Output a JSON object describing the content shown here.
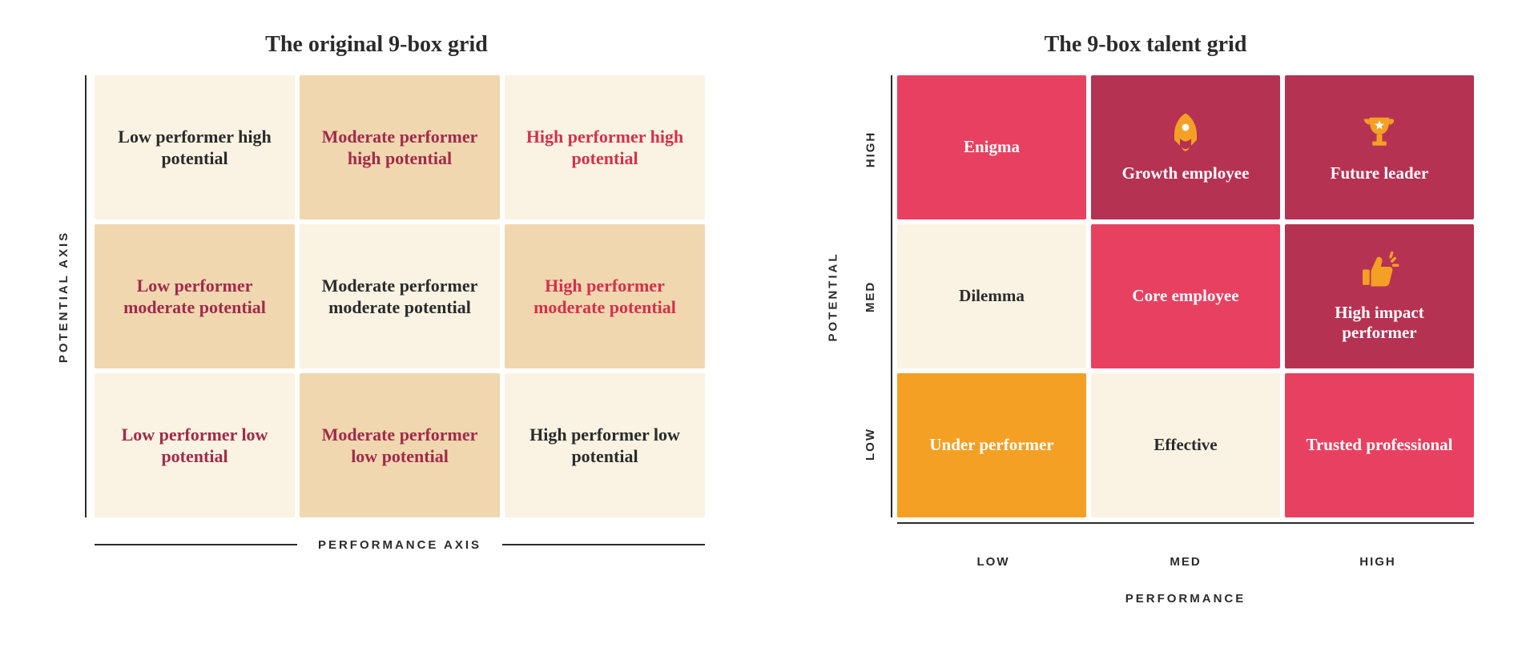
{
  "colors": {
    "cream": "#faf3e3",
    "tan": "#f0d7b0",
    "text_dark": "#2b2b2b",
    "text_maroon": "#a22a4a",
    "text_red": "#d6304a",
    "orange": "#f4a024",
    "pink": "#e84060",
    "dark_pink": "#b53253",
    "white": "#ffffff",
    "icon_gold": "#f4a024"
  },
  "left": {
    "title": "The original 9-box grid",
    "y_axis_label": "POTENTIAL AXIS",
    "x_axis_label": "PERFORMANCE AXIS",
    "cells": [
      {
        "label": "Low performer high potential",
        "bg": "cream",
        "fg": "text_dark"
      },
      {
        "label": "Moderate performer high potential",
        "bg": "tan",
        "fg": "text_maroon"
      },
      {
        "label": "High performer high potential",
        "bg": "cream",
        "fg": "text_red"
      },
      {
        "label": "Low performer moderate potential",
        "bg": "tan",
        "fg": "text_maroon"
      },
      {
        "label": "Moderate performer moderate potential",
        "bg": "cream",
        "fg": "text_dark"
      },
      {
        "label": "High performer moderate potential",
        "bg": "tan",
        "fg": "text_red"
      },
      {
        "label": "Low performer low potential",
        "bg": "cream",
        "fg": "text_maroon"
      },
      {
        "label": "Moderate performer low potential",
        "bg": "tan",
        "fg": "text_maroon"
      },
      {
        "label": "High performer low potential",
        "bg": "cream",
        "fg": "text_dark"
      }
    ]
  },
  "right": {
    "title": "The 9-box talent grid",
    "y_axis_label": "POTENTIAL",
    "x_axis_label": "PERFORMANCE",
    "y_ticks": [
      "HIGH",
      "MED",
      "LOW"
    ],
    "x_ticks": [
      "LOW",
      "MED",
      "HIGH"
    ],
    "cells": [
      {
        "label": "Enigma",
        "bg": "pink",
        "fg": "white",
        "icon": null
      },
      {
        "label": "Growth employee",
        "bg": "dark_pink",
        "fg": "white",
        "icon": "rocket"
      },
      {
        "label": "Future leader",
        "bg": "dark_pink",
        "fg": "white",
        "icon": "trophy"
      },
      {
        "label": "Dilemma",
        "bg": "cream",
        "fg": "text_dark",
        "icon": null
      },
      {
        "label": "Core employee",
        "bg": "pink",
        "fg": "white",
        "icon": null
      },
      {
        "label": "High impact performer",
        "bg": "dark_pink",
        "fg": "white",
        "icon": "thumbs"
      },
      {
        "label": "Under performer",
        "bg": "orange",
        "fg": "white",
        "icon": null
      },
      {
        "label": "Effective",
        "bg": "cream",
        "fg": "text_dark",
        "icon": null
      },
      {
        "label": "Trusted professional",
        "bg": "pink",
        "fg": "white",
        "icon": null
      }
    ]
  }
}
